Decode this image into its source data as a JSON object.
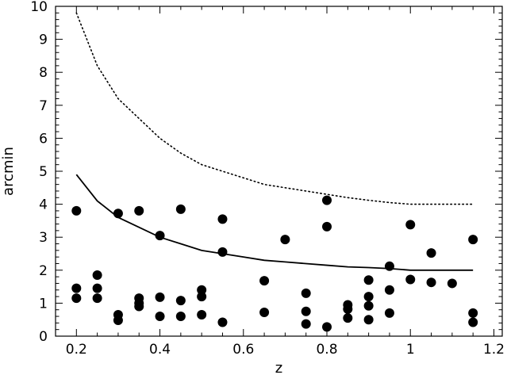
{
  "chart_data": {
    "type": "scatter",
    "title": "",
    "xlabel": "z",
    "ylabel": "arcmin",
    "xlim": [
      0.15,
      1.22
    ],
    "ylim": [
      0,
      10
    ],
    "x_ticks": [
      0.2,
      0.4,
      0.6,
      0.8,
      1,
      1.2
    ],
    "x_tick_labels": [
      "0.2",
      "0.4",
      "0.6",
      "0.8",
      "1",
      "1.2"
    ],
    "y_ticks": [
      0,
      1,
      2,
      3,
      4,
      5,
      6,
      7,
      8,
      9,
      10
    ],
    "y_tick_labels": [
      "0",
      "1",
      "2",
      "3",
      "4",
      "5",
      "6",
      "7",
      "8",
      "9",
      "10"
    ],
    "grid": false,
    "legend": "none",
    "series": [
      {
        "style": "scatter",
        "color": "#000000",
        "points": [
          [
            0.2,
            3.8
          ],
          [
            0.2,
            1.45
          ],
          [
            0.2,
            1.15
          ],
          [
            0.25,
            1.85
          ],
          [
            0.25,
            1.45
          ],
          [
            0.25,
            1.15
          ],
          [
            0.3,
            3.72
          ],
          [
            0.3,
            0.65
          ],
          [
            0.3,
            0.48
          ],
          [
            0.35,
            3.8
          ],
          [
            0.35,
            1.15
          ],
          [
            0.35,
            1.0
          ],
          [
            0.35,
            0.9
          ],
          [
            0.4,
            3.05
          ],
          [
            0.4,
            1.18
          ],
          [
            0.4,
            0.6
          ],
          [
            0.45,
            3.85
          ],
          [
            0.45,
            1.08
          ],
          [
            0.45,
            0.6
          ],
          [
            0.5,
            1.4
          ],
          [
            0.5,
            1.2
          ],
          [
            0.5,
            0.65
          ],
          [
            0.55,
            3.55
          ],
          [
            0.55,
            2.55
          ],
          [
            0.55,
            0.42
          ],
          [
            0.65,
            1.68
          ],
          [
            0.65,
            0.72
          ],
          [
            0.7,
            2.93
          ],
          [
            0.75,
            1.3
          ],
          [
            0.75,
            0.75
          ],
          [
            0.75,
            0.37
          ],
          [
            0.8,
            4.12
          ],
          [
            0.8,
            3.32
          ],
          [
            0.8,
            0.28
          ],
          [
            0.85,
            0.95
          ],
          [
            0.85,
            0.82
          ],
          [
            0.85,
            0.55
          ],
          [
            0.9,
            1.7
          ],
          [
            0.9,
            1.2
          ],
          [
            0.9,
            0.92
          ],
          [
            0.9,
            0.5
          ],
          [
            0.95,
            2.12
          ],
          [
            0.95,
            1.4
          ],
          [
            0.95,
            0.7
          ],
          [
            1.0,
            3.38
          ],
          [
            1.0,
            1.72
          ],
          [
            1.05,
            2.52
          ],
          [
            1.05,
            1.63
          ],
          [
            1.1,
            1.6
          ],
          [
            1.15,
            2.93
          ],
          [
            1.15,
            0.7
          ],
          [
            1.15,
            0.42
          ]
        ]
      },
      {
        "style": "solid-line",
        "color": "#000000",
        "points": [
          [
            0.2,
            4.9
          ],
          [
            0.25,
            4.1
          ],
          [
            0.3,
            3.6
          ],
          [
            0.35,
            3.3
          ],
          [
            0.4,
            3.0
          ],
          [
            0.45,
            2.8
          ],
          [
            0.5,
            2.6
          ],
          [
            0.55,
            2.5
          ],
          [
            0.6,
            2.4
          ],
          [
            0.65,
            2.3
          ],
          [
            0.7,
            2.25
          ],
          [
            0.75,
            2.2
          ],
          [
            0.8,
            2.15
          ],
          [
            0.85,
            2.1
          ],
          [
            0.9,
            2.08
          ],
          [
            0.95,
            2.05
          ],
          [
            1.0,
            2.0
          ],
          [
            1.05,
            2.0
          ],
          [
            1.1,
            2.0
          ],
          [
            1.15,
            2.0
          ]
        ]
      },
      {
        "style": "dotted-line",
        "color": "#000000",
        "points": [
          [
            0.2,
            9.8
          ],
          [
            0.25,
            8.2
          ],
          [
            0.3,
            7.2
          ],
          [
            0.35,
            6.6
          ],
          [
            0.4,
            6.0
          ],
          [
            0.45,
            5.55
          ],
          [
            0.5,
            5.2
          ],
          [
            0.55,
            5.0
          ],
          [
            0.6,
            4.8
          ],
          [
            0.65,
            4.6
          ],
          [
            0.7,
            4.5
          ],
          [
            0.75,
            4.4
          ],
          [
            0.8,
            4.3
          ],
          [
            0.85,
            4.2
          ],
          [
            0.9,
            4.12
          ],
          [
            0.95,
            4.05
          ],
          [
            1.0,
            4.0
          ],
          [
            1.05,
            4.0
          ],
          [
            1.1,
            4.0
          ],
          [
            1.15,
            4.0
          ]
        ]
      }
    ]
  }
}
